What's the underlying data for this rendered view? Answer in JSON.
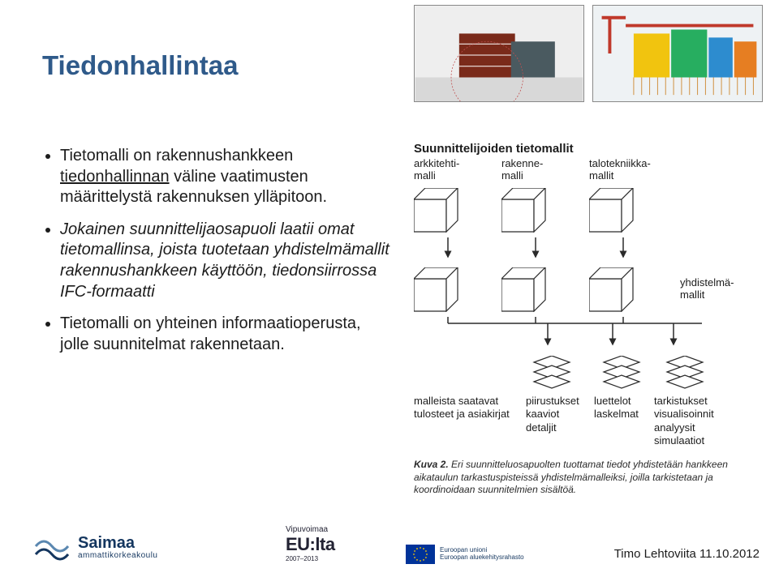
{
  "title": "Tiedonhallintaa",
  "title_color": "#2f5a8a",
  "title_fontsize": 33,
  "bullets": [
    {
      "style": "normal",
      "prefix": "Tietomalli on rakennushankkeen ",
      "underlined": "tiedonhallinnan",
      "suffix": " väline vaatimusten määrittelystä rakennuksen ylläpitoon."
    },
    {
      "style": "italic",
      "text": "Jokainen suunnittelijaosapuoli laatii omat tietomallinsa, joista tuotetaan yhdistelmämallit rakennushankkeen käyttöön, tiedonsiirrossa IFC-formaatti"
    },
    {
      "style": "normal",
      "text": "Tietomalli on yhteinen informaatioperusta, jolle suunnitelmat rakennetaan."
    }
  ],
  "bullet_fontsize": 20,
  "diagram": {
    "title": "Suunnittelijoiden tietomallit",
    "col_labels": [
      "arkkitehti-\nmalli",
      "rakenne-\nmalli",
      "talotekniikka-\nmallit"
    ],
    "row2_side_label": "yhdistelmä-\nmallit",
    "cube_stroke": "#2a2a2a",
    "cube_fill": "#ffffff",
    "bottom_groups": [
      {
        "lines": [
          "malleista saatavat",
          "tulosteet ja asiakirjat"
        ],
        "width": 138
      },
      {
        "lines": [
          "piirustukset",
          "kaaviot",
          "detaljit"
        ],
        "width": 84
      },
      {
        "lines": [
          "luettelot",
          "laskelmat"
        ],
        "width": 74
      },
      {
        "lines": [
          "tarkistukset",
          "visualisoinnit",
          "analyysit",
          "simulaatiot"
        ],
        "width": 100
      }
    ],
    "caption_label": "Kuva 2.",
    "caption_text": " Eri suunnitteluosapuolten tuottamat tiedot yhdistetään hankkeen aikataulun tarkastuspisteissä yhdistelmämalleiksi, joilla tarkistetaan ja koordinoidaan suunnitelmien sisältöä.",
    "label_fontsize": 13,
    "caption_fontsize": 12
  },
  "thumbnails": {
    "left_colors": {
      "bg": "#eeeeee",
      "building1": "#7a2a1a",
      "building2": "#4a5a60",
      "ground": "#d8d8d8"
    },
    "right_colors": {
      "bg": "#eef2f4",
      "crane": "#c0392b",
      "b1": "#f1c40f",
      "b2": "#27ae60",
      "b3": "#2d8ccf",
      "b4": "#e67e22"
    }
  },
  "footer": {
    "saimaa_name": "Saimaa",
    "saimaa_sub": "ammattikorkeakoulu",
    "vipu_top": "Vipuvoimaa",
    "vipu_big": "EU:lta",
    "vipu_sub": "2007–2013",
    "eu_line1": "Euroopan unioni",
    "eu_line2": "Euroopan aluekehitysrahasto",
    "eu_flag_bg": "#003399",
    "eu_star": "#ffcc00",
    "date_author": "Timo Lehtoviita 11.10.2012"
  }
}
